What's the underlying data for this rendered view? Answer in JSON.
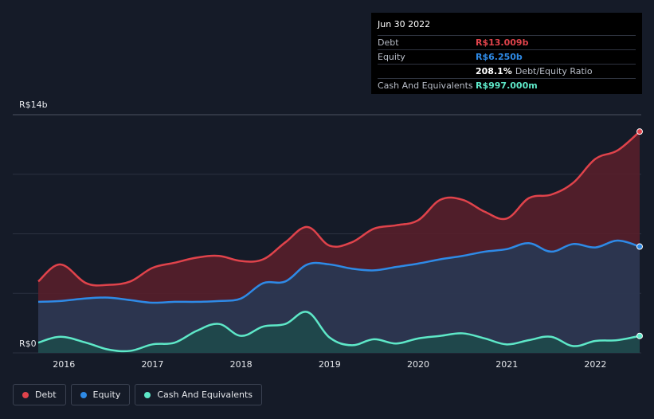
{
  "chart_data": {
    "type": "area",
    "title": "",
    "y_unit_label_top": "R$14b",
    "y_unit_label_bottom": "R$0",
    "ylim": [
      0,
      14
    ],
    "x_ticks": [
      {
        "label": "2016",
        "x": 2016.0
      },
      {
        "label": "2017",
        "x": 2017.0
      },
      {
        "label": "2018",
        "x": 2018.0
      },
      {
        "label": "2019",
        "x": 2019.0
      },
      {
        "label": "2020",
        "x": 2020.0
      },
      {
        "label": "2021",
        "x": 2021.0
      },
      {
        "label": "2022",
        "x": 2022.0
      }
    ],
    "xlim": [
      2015.71,
      2022.5
    ],
    "series": [
      {
        "name": "Debt",
        "color": "#e0434b",
        "fill": "#5a1f2a",
        "x": [
          2015.71,
          2015.96,
          2016.25,
          2016.5,
          2016.75,
          2017.0,
          2017.25,
          2017.5,
          2017.75,
          2018.0,
          2018.25,
          2018.5,
          2018.75,
          2019.0,
          2019.25,
          2019.5,
          2019.75,
          2020.0,
          2020.25,
          2020.5,
          2020.75,
          2021.0,
          2021.25,
          2021.5,
          2021.75,
          2022.0,
          2022.25,
          2022.5
        ],
        "values": [
          4.2,
          5.2,
          4.1,
          4.0,
          4.2,
          5.0,
          5.3,
          5.6,
          5.7,
          5.4,
          5.5,
          6.5,
          7.4,
          6.3,
          6.5,
          7.3,
          7.5,
          7.8,
          9.0,
          9.0,
          8.3,
          7.9,
          9.1,
          9.3,
          10.0,
          11.4,
          11.9,
          13.009
        ]
      },
      {
        "name": "Equity",
        "color": "#2e8ae6",
        "fill": "#263a56",
        "x": [
          2015.71,
          2015.96,
          2016.25,
          2016.5,
          2016.75,
          2017.0,
          2017.25,
          2017.5,
          2017.75,
          2018.0,
          2018.25,
          2018.5,
          2018.75,
          2019.0,
          2019.25,
          2019.5,
          2019.75,
          2020.0,
          2020.25,
          2020.5,
          2020.75,
          2021.0,
          2021.25,
          2021.5,
          2021.75,
          2022.0,
          2022.25,
          2022.5
        ],
        "values": [
          3.0,
          3.05,
          3.2,
          3.25,
          3.1,
          2.95,
          3.0,
          3.0,
          3.05,
          3.2,
          4.1,
          4.2,
          5.2,
          5.2,
          4.95,
          4.85,
          5.05,
          5.25,
          5.5,
          5.7,
          5.95,
          6.1,
          6.45,
          5.95,
          6.4,
          6.2,
          6.6,
          6.25
        ]
      },
      {
        "name": "Cash And Equivalents",
        "color": "#5ee8c8",
        "fill": "#1d4a4a",
        "x": [
          2015.71,
          2015.96,
          2016.25,
          2016.5,
          2016.75,
          2017.0,
          2017.25,
          2017.5,
          2017.75,
          2018.0,
          2018.25,
          2018.5,
          2018.75,
          2019.0,
          2019.25,
          2019.5,
          2019.75,
          2020.0,
          2020.25,
          2020.5,
          2020.75,
          2021.0,
          2021.25,
          2021.5,
          2021.75,
          2022.0,
          2022.25,
          2022.5
        ],
        "values": [
          0.6,
          0.95,
          0.6,
          0.2,
          0.12,
          0.5,
          0.6,
          1.3,
          1.7,
          1.0,
          1.55,
          1.7,
          2.4,
          0.9,
          0.45,
          0.8,
          0.55,
          0.85,
          1.0,
          1.15,
          0.85,
          0.5,
          0.75,
          0.95,
          0.4,
          0.7,
          0.75,
          0.997
        ]
      }
    ]
  },
  "tooltip": {
    "date": "Jun 30 2022",
    "rows": [
      {
        "label": "Debt",
        "value": "R$13.009b",
        "color": "#e0434b"
      },
      {
        "label": "Equity",
        "value": "R$6.250b",
        "color": "#2e8ae6"
      },
      {
        "label": "",
        "value": "208.1%",
        "sub": "Debt/Equity Ratio",
        "color": "#ffffff"
      },
      {
        "label": "Cash And Equivalents",
        "value": "R$997.000m",
        "color": "#5ee8c8"
      }
    ]
  },
  "legend": [
    {
      "label": "Debt",
      "color": "#e0434b"
    },
    {
      "label": "Equity",
      "color": "#2e8ae6"
    },
    {
      "label": "Cash And Equivalents",
      "color": "#5ee8c8"
    }
  ]
}
